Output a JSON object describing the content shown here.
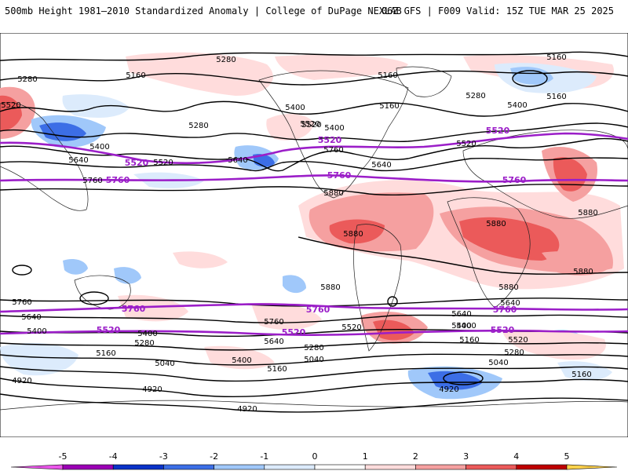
{
  "header": {
    "title_left": "500mb Height 1981–2010 Standardized Anomaly | College of DuPage NEXLAB",
    "title_right": "06Z GFS | F009 Valid: 15Z TUE MAR 25 2025"
  },
  "colors": {
    "anomaly_scale": [
      "#ea55ea",
      "#9b00b5",
      "#0a32c8",
      "#3c6ee6",
      "#a0c8fa",
      "#dcebfc",
      "#ffffff",
      "#ffdcdc",
      "#f5a0a0",
      "#eb5a5a",
      "#be0000",
      "#f5820a",
      "#ffd24b"
    ],
    "contour": "#000000",
    "highlight_contour": "#9b1ec8"
  },
  "colorbar": {
    "ticks": [
      "-5",
      "-4",
      "-3",
      "-2",
      "-1",
      "0",
      "1",
      "2",
      "3",
      "4",
      "5"
    ]
  },
  "contour_labels": {
    "black": [
      "5280",
      "5160",
      "5280",
      "5520",
      "5160",
      "5400",
      "5280",
      "5520",
      "5400",
      "5640",
      "5760",
      "5520",
      "5640",
      "5400",
      "5160",
      "5160",
      "5520",
      "5160",
      "5280",
      "5400",
      "5520",
      "5760",
      "5880",
      "5640",
      "5880",
      "5880",
      "5880",
      "5880",
      "5880",
      "5880",
      "5760",
      "5640",
      "5400",
      "5520",
      "5640",
      "5760",
      "5640",
      "5400",
      "5400",
      "5280",
      "5160",
      "5040",
      "5280",
      "5400",
      "5520",
      "5640",
      "5160",
      "5040",
      "5400",
      "5280",
      "5160",
      "5040",
      "4920",
      "4920",
      "4920",
      "4920",
      "5160"
    ],
    "purple": [
      "5520",
      "5760",
      "5520",
      "5760",
      "5520",
      "5760",
      "5760",
      "5760",
      "5520",
      "5520",
      "5520",
      "5760"
    ]
  }
}
